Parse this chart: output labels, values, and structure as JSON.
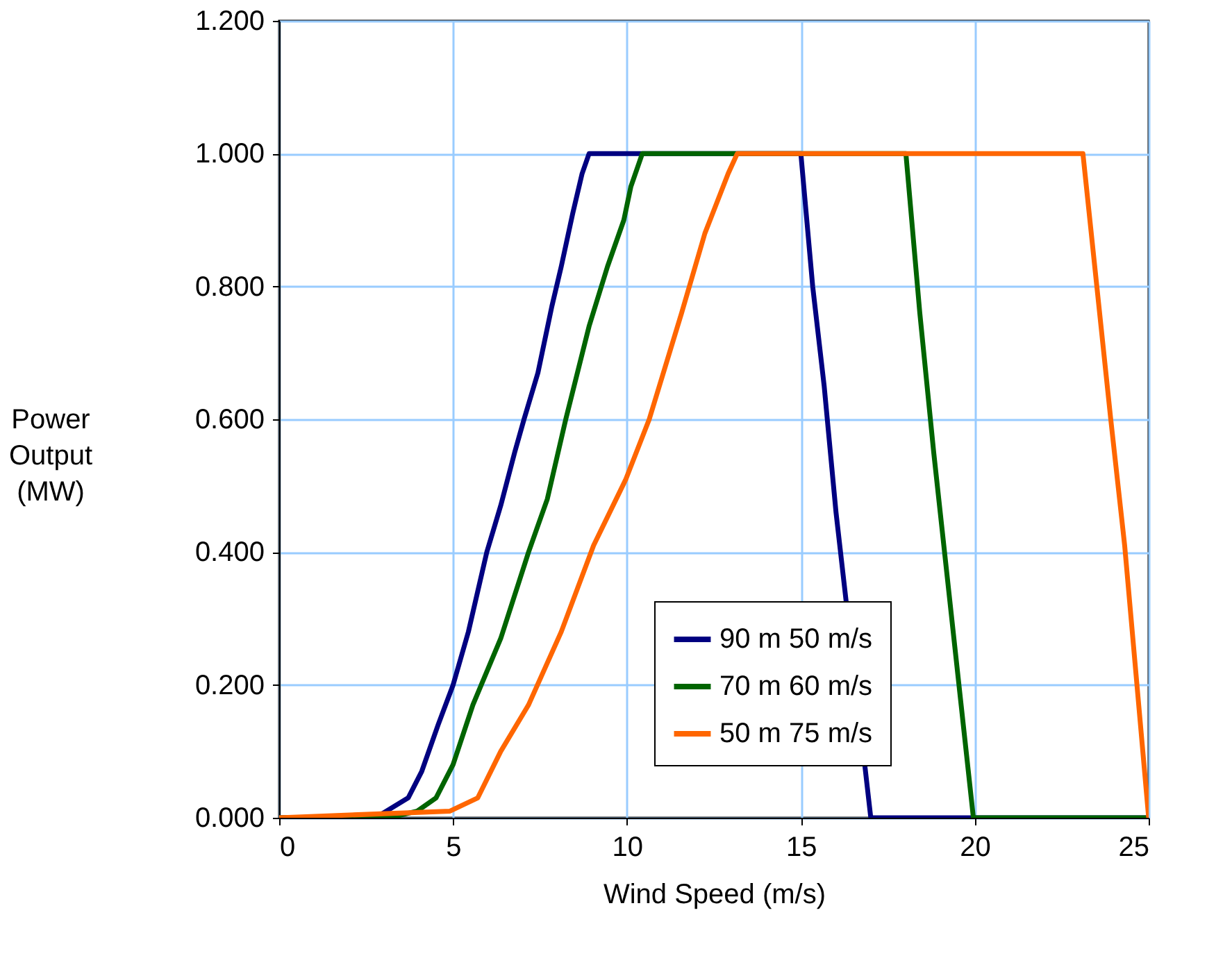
{
  "chart_data": {
    "type": "line",
    "xlabel": "Wind Speed (m/s)",
    "ylabel": "Power Output (MW)",
    "xlim": [
      0,
      25
    ],
    "xticks": [
      0,
      5,
      10,
      15,
      20,
      25
    ],
    "ylim": [
      0,
      1.2
    ],
    "yticks": [
      {
        "value": 0,
        "label": "0.000"
      },
      {
        "value": 0.2,
        "label": "0.200"
      },
      {
        "value": 0.4,
        "label": "0.400"
      },
      {
        "value": 0.6,
        "label": "0.600"
      },
      {
        "value": 0.8,
        "label": "0.800"
      },
      {
        "value": 1.0,
        "label": "1.000"
      },
      {
        "value": 1.2,
        "label": "1.200"
      }
    ],
    "grid": true,
    "legend": "bottom right",
    "marker": "none",
    "line_style": "solid",
    "series": [
      {
        "name": "90 m 50 m/s",
        "color": "#000080",
        "x": [
          0,
          2.77,
          3.71,
          4.1,
          4.57,
          5,
          5.44,
          5.97,
          6.37,
          6.77,
          7.04,
          7.44,
          7.84,
          8.11,
          8.44,
          8.71,
          8.91,
          15,
          15.34,
          15.67,
          16.01,
          17.01,
          25
        ],
        "values": [
          0,
          0,
          0.03,
          0.07,
          0.14,
          0.2,
          0.28,
          0.4,
          0.47,
          0.55,
          0.6,
          0.67,
          0.77,
          0.83,
          0.91,
          0.97,
          1.0,
          1.0,
          0.8,
          0.65,
          0.46,
          0,
          0
        ]
      },
      {
        "name": "70 m 60 m/s",
        "color": "#006400",
        "x": [
          0,
          3.17,
          3.97,
          4.51,
          5,
          5.57,
          6.37,
          7.17,
          7.71,
          8.24,
          8.91,
          9.44,
          9.91,
          10.11,
          10.44,
          18.02,
          18.42,
          18.82,
          19.96,
          25
        ],
        "values": [
          0,
          0,
          0.01,
          0.03,
          0.08,
          0.17,
          0.27,
          0.4,
          0.48,
          0.6,
          0.74,
          0.83,
          0.9,
          0.95,
          1.0,
          1.0,
          0.76,
          0.55,
          0,
          0
        ]
      },
      {
        "name": "50 m 75 m/s",
        "color": "#ff6600",
        "x": [
          0,
          4.91,
          5.71,
          6.37,
          7.17,
          8.11,
          9.04,
          9.97,
          10.64,
          11.57,
          12.24,
          12.91,
          13.17,
          23.11,
          23.91,
          24.31,
          25
        ],
        "values": [
          0,
          0.01,
          0.03,
          0.1,
          0.17,
          0.28,
          0.41,
          0.51,
          0.6,
          0.76,
          0.88,
          0.97,
          1.0,
          1.0,
          0.6,
          0.41,
          0
        ]
      }
    ]
  }
}
